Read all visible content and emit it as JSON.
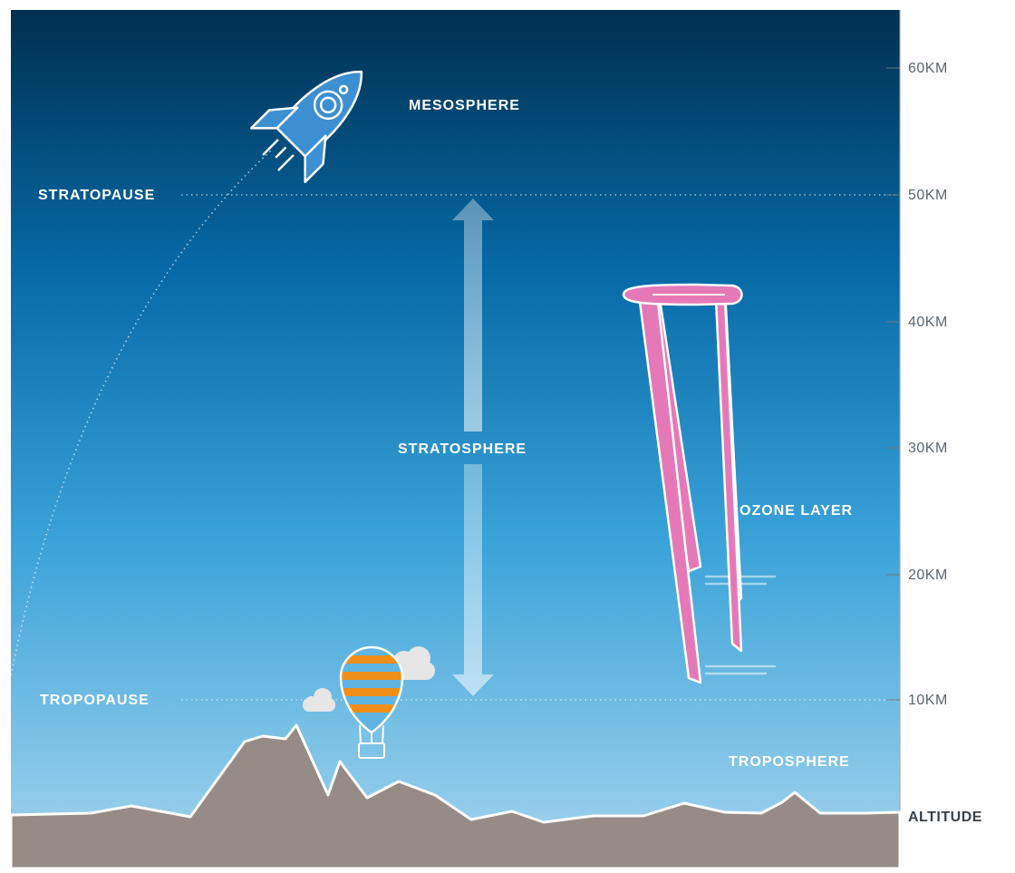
{
  "layers": {
    "mesosphere": "MESOSPHERE",
    "stratopause": "STRATOPAUSE",
    "stratosphere": "STRATOSPHERE",
    "ozone_layer": "OZONE LAYER",
    "tropopause": "TROPOPAUSE",
    "troposphere": "TROPOSPHERE"
  },
  "scale": {
    "ticks": [
      "60KM",
      "50KM",
      "40KM",
      "30KM",
      "20KM",
      "10KM"
    ],
    "axis_label": "ALTITUDE"
  },
  "colors": {
    "sky_top": "#00304f",
    "sky_mid": "#0669a6",
    "sky_bottom": "#a6d5ee",
    "mountains": "#978b87",
    "rocket": "#3c8fd1",
    "airplane": "#e579b7",
    "balloon_stripe": "#ef8e18",
    "balloon_stripe_alt": "#5fb4e2"
  },
  "icons": [
    "rocket-icon",
    "airplane-icon",
    "hot-air-balloon-icon",
    "cloud-icon"
  ]
}
